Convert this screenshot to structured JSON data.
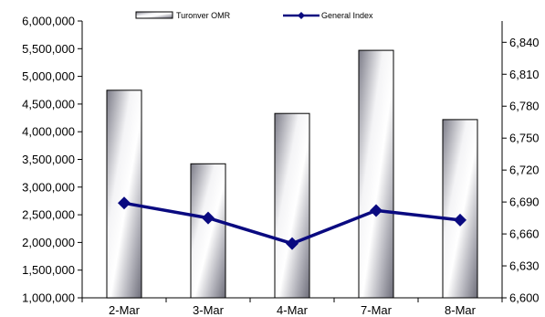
{
  "chart_data": {
    "type": "bar+line",
    "categories": [
      "2-Mar",
      "3-Mar",
      "4-Mar",
      "7-Mar",
      "8-Mar"
    ],
    "series": [
      {
        "name": "Turonver OMR",
        "kind": "bar",
        "axis": "left",
        "values": [
          4750000,
          3420000,
          4330000,
          5470000,
          4220000
        ]
      },
      {
        "name": "General Index",
        "kind": "line",
        "axis": "right",
        "values": [
          6689,
          6675,
          6651,
          6682,
          6673
        ]
      }
    ],
    "left_axis": {
      "ylim": [
        1000000,
        6000000
      ],
      "ticks": [
        1000000,
        1500000,
        2000000,
        2500000,
        3000000,
        3500000,
        4000000,
        4500000,
        5000000,
        5500000,
        6000000
      ],
      "tick_labels": [
        "1,000,000",
        "1,500,000",
        "2,000,000",
        "2,500,000",
        "3,000,000",
        "3,500,000",
        "4,000,000",
        "4,500,000",
        "5,000,000",
        "5,500,000",
        "6,000,000"
      ]
    },
    "right_axis": {
      "ylim": [
        6600,
        6860
      ],
      "ticks": [
        6600,
        6630,
        6660,
        6690,
        6720,
        6750,
        6780,
        6810,
        6840
      ],
      "tick_labels": [
        "6,600",
        "6,630",
        "6,660",
        "6,690",
        "6,720",
        "6,750",
        "6,780",
        "6,810",
        "6,840"
      ]
    },
    "legend": {
      "placement": "top",
      "entries": [
        "Turonver OMR",
        "General Index"
      ]
    },
    "grid": false,
    "colors": {
      "line": "#0a0a80",
      "bar_dark": "#8a8a96",
      "bar_light": "#ffffff"
    }
  }
}
